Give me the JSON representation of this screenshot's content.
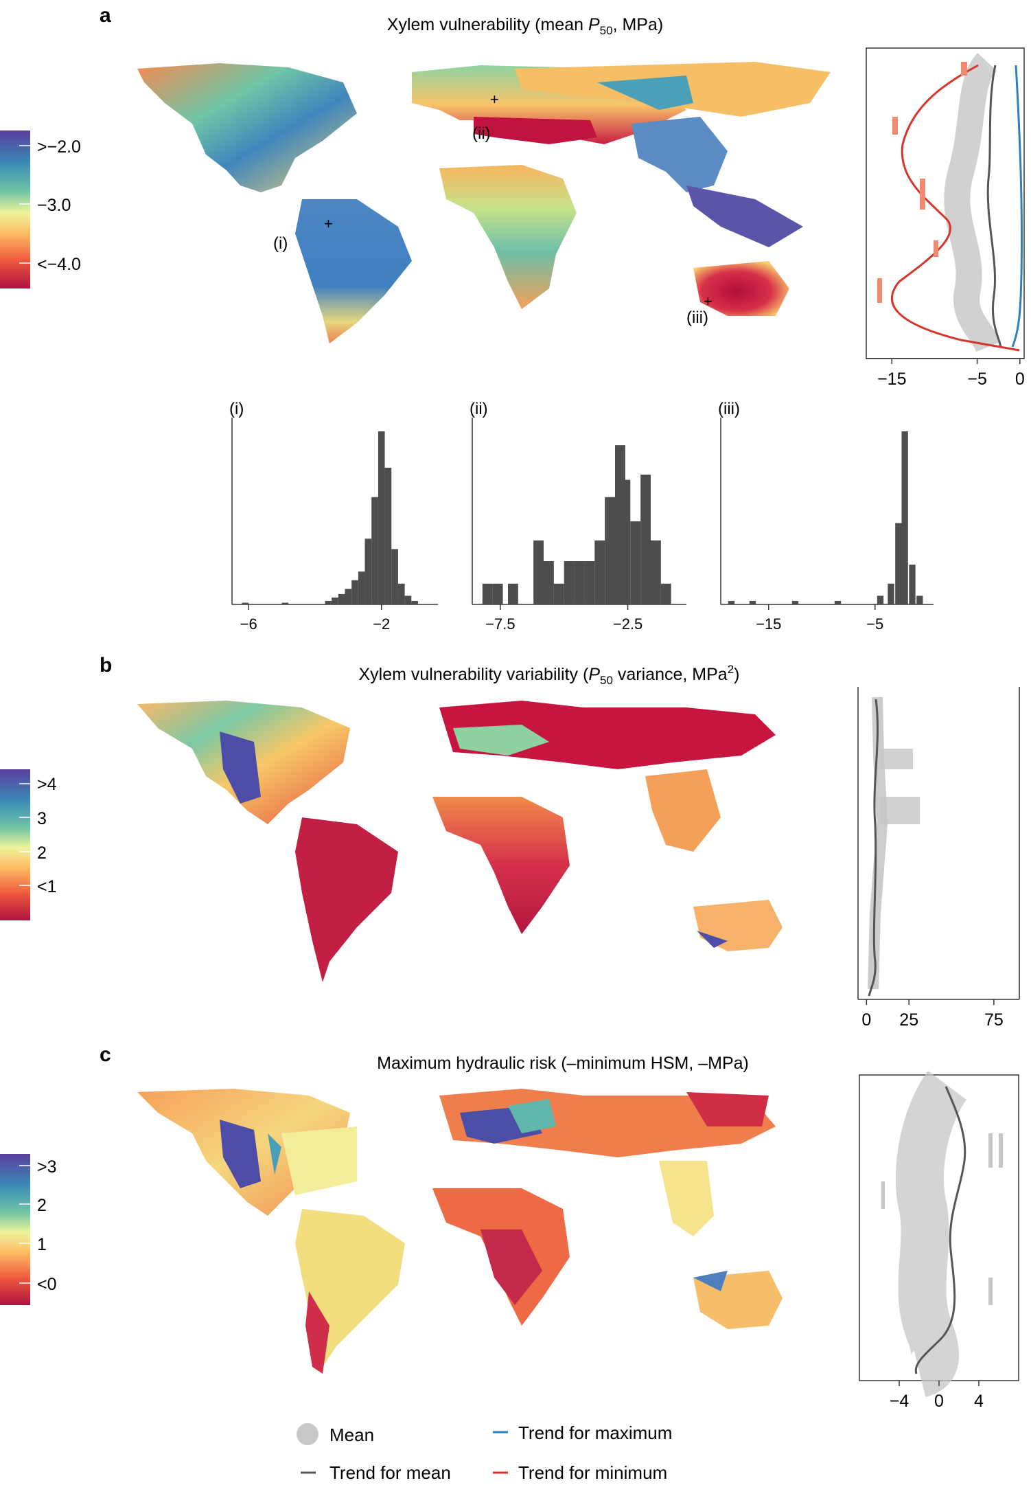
{
  "panels": [
    {
      "letter": "a",
      "title_pre": "Xylem vulnerability (mean ",
      "title_var": "P",
      "title_sub": "50",
      "title_post": ", MPa)",
      "title_sup": "",
      "title_end": "",
      "colorbar_labels": [
        ">−2.0",
        "−3.0",
        "<−4.0"
      ],
      "markers": [
        "(i)",
        "(ii)",
        "(iii)"
      ],
      "side_ticks": [
        "−15",
        "−5",
        "0"
      ],
      "side_tick_values": [
        -15,
        -5,
        0
      ],
      "side_range": [
        -18,
        0.5
      ]
    },
    {
      "letter": "b",
      "title_pre": "Xylem vulnerability variability (",
      "title_var": "P",
      "title_sub": "50",
      "title_post": " variance, MPa",
      "title_sup": "2",
      "title_end": ")",
      "colorbar_labels": [
        ">4",
        "3",
        "2",
        "<1"
      ],
      "side_ticks": [
        "0",
        "25",
        "75"
      ],
      "side_tick_values": [
        0,
        25,
        75
      ],
      "side_range": [
        -5,
        90
      ]
    },
    {
      "letter": "c",
      "title_pre": "Maximum hydraulic risk (–minimum HSM, –MPa)",
      "title_var": "",
      "title_sub": "",
      "title_post": "",
      "title_sup": "",
      "title_end": "",
      "colorbar_labels": [
        ">3",
        "2",
        "1",
        "<0"
      ],
      "side_ticks": [
        "−4",
        "0",
        "4"
      ],
      "side_tick_values": [
        -4,
        0,
        4
      ],
      "side_range": [
        -8,
        8
      ]
    }
  ],
  "chart_data": [
    {
      "type": "bar",
      "title": "(i)",
      "x_range": [
        -6.5,
        -0.3
      ],
      "x_ticks": [
        "−6",
        "−2"
      ],
      "x_tick_values": [
        -6,
        -2
      ],
      "bins": [
        [
          -6.1,
          0.01
        ],
        [
          -4.9,
          0.01
        ],
        [
          -3.6,
          0.02
        ],
        [
          -3.4,
          0.04
        ],
        [
          -3.2,
          0.06
        ],
        [
          -3.0,
          0.09
        ],
        [
          -2.8,
          0.14
        ],
        [
          -2.6,
          0.19
        ],
        [
          -2.4,
          0.38
        ],
        [
          -2.2,
          0.62
        ],
        [
          -2.0,
          1.0
        ],
        [
          -1.8,
          0.79
        ],
        [
          -1.6,
          0.32
        ],
        [
          -1.4,
          0.12
        ],
        [
          -1.2,
          0.05
        ],
        [
          -1.0,
          0.02
        ]
      ],
      "bin_width": 0.2
    },
    {
      "type": "bar",
      "title": "(ii)",
      "x_range": [
        -8.6,
        -0.2
      ],
      "x_ticks": [
        "−7.5",
        "−2.5"
      ],
      "x_tick_values": [
        -7.5,
        -2.5
      ],
      "bins": [
        [
          -8.0,
          0.12
        ],
        [
          -7.6,
          0.12
        ],
        [
          -7.0,
          0.12
        ],
        [
          -6.0,
          0.37
        ],
        [
          -5.6,
          0.25
        ],
        [
          -5.2,
          0.12
        ],
        [
          -4.8,
          0.25
        ],
        [
          -4.4,
          0.25
        ],
        [
          -4.0,
          0.25
        ],
        [
          -3.6,
          0.37
        ],
        [
          -3.2,
          0.62
        ],
        [
          -2.8,
          0.92
        ],
        [
          -2.6,
          0.72
        ],
        [
          -2.2,
          0.48
        ],
        [
          -1.8,
          0.75
        ],
        [
          -1.4,
          0.37
        ],
        [
          -1.0,
          0.12
        ]
      ],
      "bin_width": 0.4
    },
    {
      "type": "bar",
      "title": "(iii)",
      "x_range": [
        -19.5,
        0.5
      ],
      "x_ticks": [
        "−15",
        "−5"
      ],
      "x_tick_values": [
        -15,
        -5
      ],
      "bins": [
        [
          -18.5,
          0.02
        ],
        [
          -16.5,
          0.02
        ],
        [
          -12.5,
          0.02
        ],
        [
          -8.5,
          0.02
        ],
        [
          -4.5,
          0.05
        ],
        [
          -3.5,
          0.12
        ],
        [
          -2.8,
          0.47
        ],
        [
          -2.2,
          1.0
        ],
        [
          -1.5,
          0.23
        ],
        [
          -0.8,
          0.05
        ]
      ],
      "bin_width": 0.6
    }
  ],
  "legend": {
    "items": [
      {
        "label": "Mean",
        "color": "#c8c8c8",
        "kind": "dot"
      },
      {
        "label": "Trend for mean",
        "color": "#555555",
        "kind": "line"
      },
      {
        "label": "Trend for maximum",
        "color": "#2f7fc1",
        "kind": "line"
      },
      {
        "label": "Trend for minimum",
        "color": "#d7352a",
        "kind": "line"
      }
    ]
  },
  "colors": {
    "bar": "#4d4d4d",
    "scatter": "#c3c3c3",
    "trend_mean": "#555555",
    "trend_max": "#2f7fc1",
    "trend_min": "#d7352a",
    "points_min": "#f08a70",
    "spectral": [
      "#5a3f9e",
      "#3a78b6",
      "#4fb0a6",
      "#a6d96a",
      "#f4ee8a",
      "#fdae61",
      "#f46d43",
      "#d53e4f",
      "#a50f3d"
    ]
  }
}
